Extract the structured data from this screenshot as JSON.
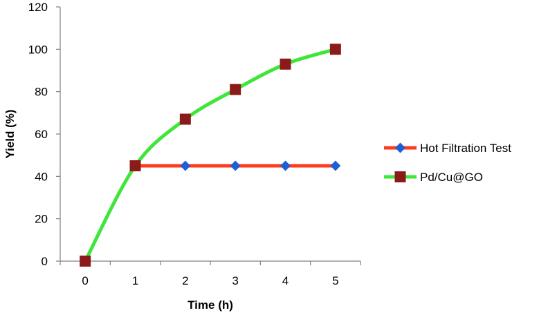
{
  "chart_data": {
    "type": "line",
    "title": "",
    "xlabel": "Time (h)",
    "ylabel": "Yield (%)",
    "xlim": [
      -0.5,
      5.5
    ],
    "ylim": [
      0,
      120
    ],
    "x_ticks": [
      "0",
      "1",
      "2",
      "3",
      "4",
      "5"
    ],
    "y_ticks": [
      "0",
      "20",
      "40",
      "60",
      "80",
      "100",
      "120"
    ],
    "grid": false,
    "legend_position": "right",
    "series": [
      {
        "name": "Hot Filtration Test",
        "line_color": "#ff3b1f",
        "marker_color": "#1f5fd6",
        "marker": "diamond",
        "x": [
          1,
          2,
          3,
          4,
          5
        ],
        "y": [
          45,
          45,
          45,
          45,
          45
        ]
      },
      {
        "name": "Pd/Cu@GO",
        "line_color": "#3fe63a",
        "marker_color": "#8b1a1a",
        "marker": "square",
        "x": [
          0,
          1,
          2,
          3,
          4,
          5
        ],
        "y": [
          0,
          45,
          67,
          81,
          93,
          100
        ]
      }
    ]
  }
}
